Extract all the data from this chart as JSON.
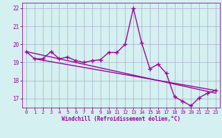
{
  "xlabel": "Windchill (Refroidissement éolien,°C)",
  "ylabel": "",
  "bg_color": "#d4f0f0",
  "line_color": "#990099",
  "grid_color": "#aaaacc",
  "x_values": [
    0,
    1,
    2,
    3,
    4,
    5,
    6,
    7,
    8,
    9,
    10,
    11,
    12,
    13,
    14,
    15,
    16,
    17,
    18,
    19,
    20,
    21,
    22,
    23
  ],
  "y_values": [
    19.6,
    19.2,
    19.2,
    19.6,
    19.2,
    19.3,
    19.1,
    19.0,
    19.1,
    19.15,
    19.55,
    19.55,
    20.0,
    22.0,
    20.1,
    18.65,
    18.9,
    18.4,
    17.1,
    16.85,
    16.6,
    17.05,
    17.3,
    17.45
  ],
  "trend1": [
    19.6,
    17.3
  ],
  "trend1_x": [
    0,
    23
  ],
  "trend2": [
    19.2,
    17.45
  ],
  "trend2_x": [
    1,
    23
  ],
  "ylim": [
    16.5,
    22.3
  ],
  "yticks": [
    17,
    18,
    19,
    20,
    21,
    22
  ],
  "xticks": [
    0,
    1,
    2,
    3,
    4,
    5,
    6,
    7,
    8,
    9,
    10,
    11,
    12,
    13,
    14,
    15,
    16,
    17,
    18,
    19,
    20,
    21,
    22,
    23
  ],
  "marker": "+",
  "markersize": 5,
  "linewidth": 1.0
}
